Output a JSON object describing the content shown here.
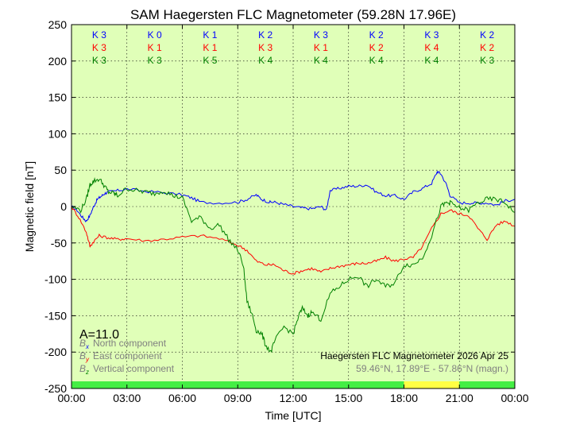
{
  "chart_data": {
    "type": "line",
    "title": "SAM Haegersten FLC Magnetometer (59.28N 17.96E)",
    "xlabel": "Time [UTC]",
    "ylabel": "Magnetic field [nT]",
    "xlim": [
      0,
      24
    ],
    "ylim": [
      -250,
      250
    ],
    "x_ticks": [
      "00:00",
      "03:00",
      "06:00",
      "09:00",
      "12:00",
      "15:00",
      "18:00",
      "21:00",
      "00:00"
    ],
    "y_ticks": [
      250,
      200,
      150,
      100,
      50,
      0,
      -50,
      -100,
      -150,
      -200,
      -250
    ],
    "grid": true,
    "background_color": "#e0ffb8",
    "a_index": "A=11.0",
    "k_indices": {
      "north": [
        "K 3",
        "K 0",
        "K 1",
        "K 2",
        "K 3",
        "K 2",
        "K 3",
        "K 2"
      ],
      "east": [
        "K 3",
        "K 1",
        "K 1",
        "K 3",
        "K 1",
        "K 2",
        "K 4",
        "K 2"
      ],
      "vertical": [
        "K 3",
        "K 3",
        "K 5",
        "K 4",
        "K 4",
        "K 4",
        "K 4",
        "K 3"
      ]
    },
    "activity_bar": [
      {
        "from": 0,
        "to": 18,
        "color": "#44ee44"
      },
      {
        "from": 18,
        "to": 21,
        "color": "#ffff44"
      },
      {
        "from": 21,
        "to": 24,
        "color": "#44ee44"
      }
    ],
    "legend": [
      {
        "symbol": "B",
        "sub": "x",
        "label": "North component",
        "color": "#0000ff"
      },
      {
        "symbol": "B",
        "sub": "y",
        "label": "East component",
        "color": "#ff0000"
      },
      {
        "symbol": "B",
        "sub": "z",
        "label": "Vertical component",
        "color": "#008000"
      }
    ],
    "station_caption": "Haegersten FLC Magnetometer 2026 Apr 25",
    "station_coords": "59.46°N, 17.89°E - 57.86°N (magn.)",
    "series": [
      {
        "name": "North component",
        "color": "#0000ff",
        "x": [
          0,
          0.3,
          0.6,
          0.8,
          1.0,
          1.2,
          1.4,
          1.6,
          1.8,
          2.0,
          2.5,
          3.0,
          4.0,
          5.0,
          6.0,
          6.5,
          7.0,
          8.0,
          9.0,
          9.5,
          10.0,
          10.3,
          10.7,
          11.0,
          11.5,
          12.0,
          12.5,
          13.0,
          13.5,
          13.8,
          14.0,
          14.5,
          15.0,
          15.5,
          16.0,
          16.5,
          17.0,
          17.5,
          18.0,
          18.5,
          19.0,
          19.5,
          19.8,
          20.0,
          20.3,
          20.5,
          21.0,
          21.5,
          22.0,
          22.5,
          23.0,
          23.5,
          24.0
        ],
        "y": [
          0,
          -5,
          -15,
          -20,
          -12,
          0,
          10,
          14,
          18,
          20,
          22,
          24,
          21,
          19,
          16,
          12,
          6,
          5,
          6,
          10,
          16,
          10,
          6,
          6,
          3,
          0,
          -2,
          -3,
          0,
          -5,
          22,
          25,
          28,
          28,
          30,
          20,
          15,
          15,
          10,
          20,
          25,
          32,
          48,
          45,
          30,
          15,
          5,
          5,
          5,
          5,
          2,
          8,
          10
        ]
      },
      {
        "name": "East component",
        "color": "#ff0000",
        "x": [
          0,
          0.4,
          0.8,
          1.0,
          1.2,
          1.5,
          2.0,
          2.5,
          3.0,
          4.0,
          5.0,
          6.0,
          7.0,
          8.0,
          9.0,
          9.5,
          10.0,
          10.5,
          11.0,
          11.5,
          12.0,
          12.5,
          13.0,
          13.5,
          14.0,
          14.5,
          15.0,
          15.5,
          16.0,
          16.5,
          17.0,
          17.5,
          18.0,
          18.5,
          19.0,
          19.5,
          20.0,
          20.5,
          21.0,
          21.5,
          22.0,
          22.5,
          23.0,
          23.5,
          24.0
        ],
        "y": [
          0,
          -15,
          -35,
          -55,
          -48,
          -40,
          -43,
          -45,
          -44,
          -47,
          -45,
          -42,
          -40,
          -44,
          -53,
          -60,
          -75,
          -80,
          -80,
          -88,
          -92,
          -88,
          -85,
          -90,
          -85,
          -82,
          -80,
          -78,
          -78,
          -75,
          -70,
          -75,
          -72,
          -70,
          -55,
          -30,
          -10,
          -5,
          -10,
          -12,
          -30,
          -45,
          -25,
          -20,
          -27
        ]
      },
      {
        "name": "Vertical component",
        "color": "#008000",
        "x": [
          0,
          0.5,
          0.8,
          1.0,
          1.2,
          1.5,
          1.8,
          2.0,
          2.3,
          2.5,
          3.0,
          3.5,
          4.0,
          4.5,
          5.0,
          5.5,
          6.0,
          6.5,
          7.0,
          7.5,
          8.0,
          8.5,
          9.0,
          9.3,
          9.5,
          9.8,
          10.0,
          10.3,
          10.5,
          10.8,
          11.0,
          11.5,
          12.0,
          12.3,
          12.5,
          12.8,
          13.0,
          13.5,
          14.0,
          14.5,
          15.0,
          15.5,
          16.0,
          16.5,
          17.0,
          17.5,
          18.0,
          18.5,
          19.0,
          19.5,
          20.0,
          20.3,
          20.5,
          21.0,
          21.5,
          22.0,
          22.5,
          23.0,
          23.5,
          24.0
        ],
        "y": [
          0,
          -5,
          10,
          30,
          35,
          38,
          28,
          20,
          18,
          15,
          25,
          22,
          20,
          18,
          22,
          15,
          12,
          -20,
          -15,
          -30,
          -25,
          -45,
          -60,
          -80,
          -130,
          -150,
          -170,
          -175,
          -190,
          -200,
          -185,
          -165,
          -175,
          -150,
          -140,
          -150,
          -145,
          -155,
          -120,
          -110,
          -100,
          -95,
          -110,
          -100,
          -110,
          -105,
          -80,
          -80,
          -70,
          -40,
          0,
          5,
          5,
          -2,
          -5,
          5,
          10,
          10,
          5,
          -8
        ]
      }
    ]
  }
}
